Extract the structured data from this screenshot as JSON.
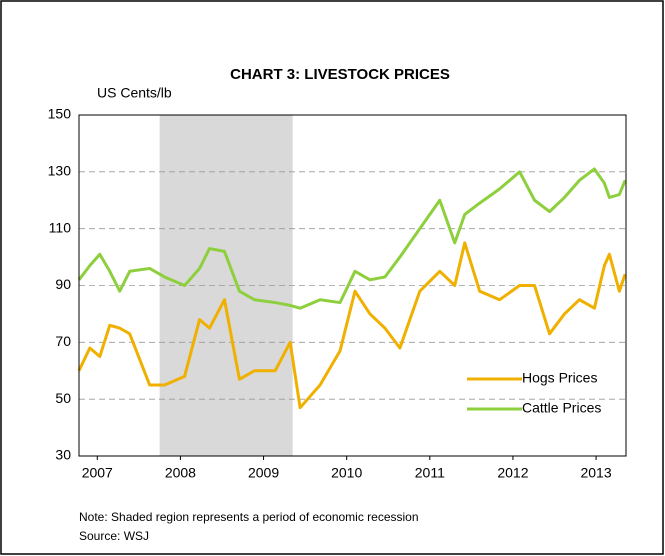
{
  "chart_data": {
    "type": "line",
    "title": "CHART 3: LIVESTOCK PRICES",
    "y_label": "US Cents/lb",
    "x": [
      2006.78,
      2006.91,
      2007.03,
      2007.15,
      2007.27,
      2007.39,
      2007.63,
      2007.81,
      2008.05,
      2008.23,
      2008.35,
      2008.53,
      2008.71,
      2008.89,
      2009.14,
      2009.32,
      2009.44,
      2009.68,
      2009.92,
      2010.1,
      2010.28,
      2010.46,
      2010.64,
      2010.88,
      2011.12,
      2011.3,
      2011.42,
      2011.6,
      2011.84,
      2012.08,
      2012.26,
      2012.44,
      2012.62,
      2012.8,
      2012.98,
      2013.1,
      2013.16,
      2013.28,
      2013.35
    ],
    "series": [
      {
        "name": "Hogs Prices",
        "color": "#f0b000",
        "values": [
          60,
          68,
          65,
          76,
          75,
          73,
          55,
          55,
          58,
          78,
          75,
          85,
          57,
          60,
          60,
          70,
          47,
          55,
          67,
          88,
          80,
          75,
          68,
          88,
          95,
          90,
          105,
          88,
          85,
          90,
          90,
          73,
          80,
          85,
          82,
          97,
          101,
          88,
          94
        ]
      },
      {
        "name": "Cattle Prices",
        "color": "#8dcf3c",
        "values": [
          92,
          97,
          101,
          95,
          88,
          95,
          96,
          93,
          90,
          96,
          103,
          102,
          88,
          85,
          84,
          83,
          82,
          85,
          84,
          95,
          92,
          93,
          100,
          110,
          120,
          105,
          115,
          119,
          124,
          130,
          120,
          116,
          121,
          127,
          131,
          126,
          121,
          122,
          127
        ]
      }
    ],
    "xlim": [
      2006.78,
      2013.36
    ],
    "xticks": [
      2007,
      2008,
      2009,
      2010,
      2011,
      2012,
      2013
    ],
    "ylim": [
      30,
      150
    ],
    "yticks": [
      30,
      50,
      70,
      90,
      110,
      130,
      150
    ],
    "shaded_region": [
      2007.75,
      2009.35
    ],
    "grid": true,
    "legend": "lower right",
    "notes": [
      "Note: Shaded region represents a period of economic recession",
      "Source: WSJ"
    ]
  }
}
